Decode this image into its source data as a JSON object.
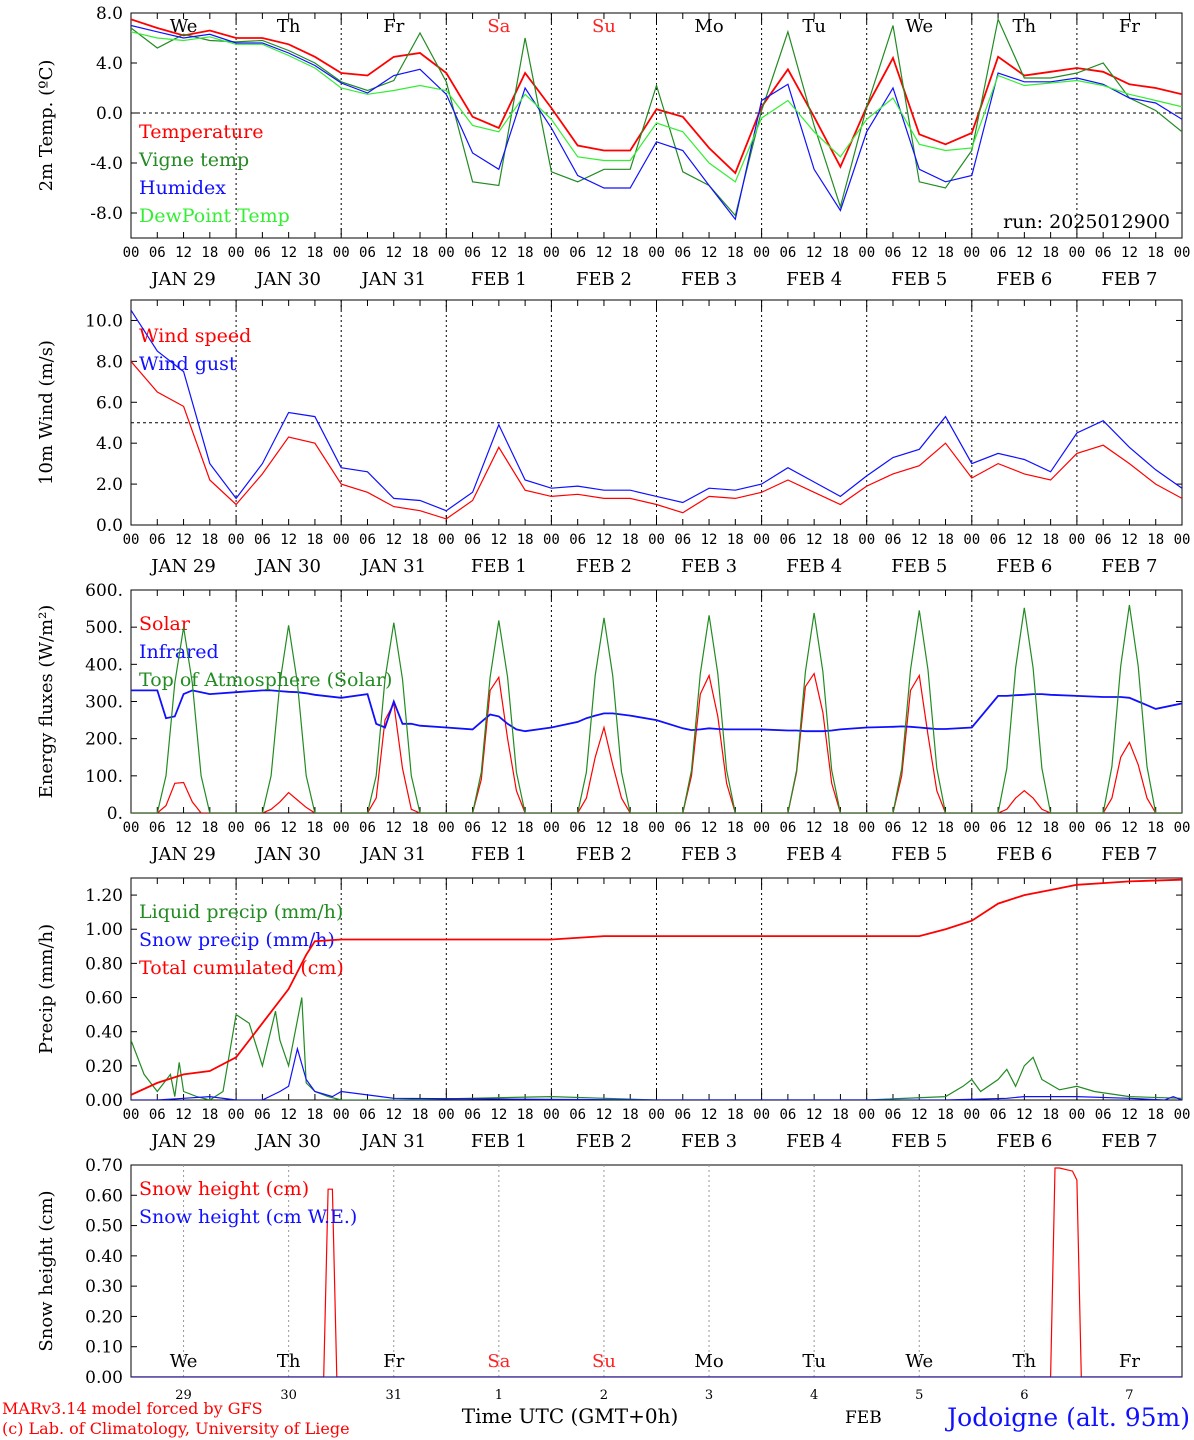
{
  "footer": {
    "credit1": "MARv3.14 model forced by GFS",
    "credit2": "(c) Lab. of Climatology, University of Liege",
    "xlabel": "Time UTC (GMT+0h)",
    "station": "Jodoigne (alt. 95m)",
    "feb_label": "FEB"
  },
  "colors": {
    "red": "#ff0000",
    "darkgreen": "#228b22",
    "blue": "#1010ff",
    "lightgreen": "#33ee33",
    "weekend": "#ff2020",
    "axis": "#000000"
  },
  "time": {
    "hour_ticks": [
      "00",
      "06",
      "12",
      "18"
    ],
    "day_labels": [
      "JAN 29",
      "JAN 30",
      "JAN 31",
      "FEB  1",
      "FEB  2",
      "FEB  3",
      "FEB  4",
      "FEB  5",
      "FEB  6",
      "FEB  7"
    ],
    "weekdays": [
      "We",
      "Th",
      "Fr",
      "Sa",
      "Su",
      "Mo",
      "Tu",
      "We",
      "Th",
      "Fr"
    ],
    "weekend_flags": [
      false,
      false,
      false,
      true,
      true,
      false,
      false,
      false,
      false,
      false
    ],
    "bottom_day_numbers": [
      "29",
      "30",
      "31",
      "1",
      "2",
      "3",
      "4",
      "5",
      "6",
      "7"
    ]
  },
  "chart_data": [
    {
      "type": "line",
      "ylabel": "2m Temp. (ºC)",
      "ylim": [
        -10,
        8
      ],
      "yticks": [
        "8.0",
        "4.0",
        "0.0",
        "-4.0",
        "-8.0"
      ],
      "ytick_values": [
        8,
        4,
        0,
        -4,
        -8
      ],
      "ref_line": 0,
      "annotation": "run: 2025012900",
      "x_hours": [
        0,
        6,
        12,
        18,
        24,
        30,
        36,
        42,
        48,
        54,
        60,
        66,
        72,
        78,
        84,
        90,
        96,
        102,
        108,
        114,
        120,
        126,
        132,
        138,
        144,
        150,
        156,
        162,
        168,
        174,
        180,
        186,
        192,
        198,
        204,
        210,
        216,
        222,
        228,
        234,
        240
      ],
      "series": [
        {
          "name": "Temperature",
          "color": "#ff0000",
          "values": [
            7.5,
            6.8,
            6.2,
            6.6,
            6.0,
            6.0,
            5.5,
            4.5,
            3.2,
            3.0,
            4.5,
            4.8,
            3.2,
            -0.3,
            -1.2,
            3.2,
            0.4,
            -2.6,
            -3.0,
            -3.0,
            0.3,
            -0.3,
            -2.8,
            -4.8,
            0.5,
            3.5,
            -0.3,
            -4.3,
            0.5,
            4.4,
            -1.7,
            -2.5,
            -1.6,
            4.5,
            3.0,
            3.3,
            3.6,
            3.3,
            2.3,
            2.0,
            1.5
          ]
        },
        {
          "name": "Vigne temp",
          "color": "#228b22",
          "values": [
            6.8,
            5.2,
            6.3,
            5.8,
            5.7,
            5.8,
            5.0,
            4.0,
            2.5,
            1.8,
            2.6,
            6.4,
            2.5,
            -5.5,
            -5.8,
            6.0,
            -4.7,
            -5.5,
            -4.5,
            -4.5,
            2.2,
            -4.7,
            -5.8,
            -8.2,
            0.2,
            6.5,
            -1.0,
            -7.5,
            0.5,
            7.0,
            -5.5,
            -6.0,
            -3.0,
            7.5,
            2.8,
            2.8,
            3.2,
            4.0,
            1.2,
            0.2,
            -1.5
          ]
        },
        {
          "name": "Humidex",
          "color": "#1010ff",
          "values": [
            7.0,
            6.5,
            6.0,
            6.3,
            5.6,
            5.6,
            4.8,
            3.8,
            2.4,
            1.6,
            3.0,
            3.5,
            1.5,
            -3.2,
            -4.5,
            2.0,
            -1.2,
            -5.0,
            -6.0,
            -6.0,
            -2.3,
            -3.0,
            -5.8,
            -8.5,
            1.0,
            2.3,
            -4.5,
            -7.8,
            -1.5,
            2.0,
            -4.5,
            -5.5,
            -5.0,
            3.2,
            2.5,
            2.5,
            2.8,
            2.3,
            1.2,
            0.8,
            -0.5
          ]
        },
        {
          "name": "DewPoint Temp",
          "color": "#33ee33",
          "values": [
            6.5,
            6.0,
            5.8,
            6.1,
            5.5,
            5.5,
            4.6,
            3.6,
            2.0,
            1.5,
            1.8,
            2.2,
            1.8,
            -1.0,
            -1.5,
            1.5,
            -0.5,
            -3.5,
            -3.8,
            -3.8,
            -0.8,
            -1.5,
            -4.0,
            -5.5,
            -0.4,
            1.0,
            -1.5,
            -3.5,
            -0.5,
            1.2,
            -2.5,
            -3.0,
            -2.8,
            3.0,
            2.2,
            2.4,
            2.6,
            2.2,
            1.5,
            1.0,
            0.5
          ]
        }
      ]
    },
    {
      "type": "line",
      "ylabel": "10m Wind (m/s)",
      "ylim": [
        0,
        11
      ],
      "yticks": [
        "10.0",
        "8.0",
        "6.0",
        "4.0",
        "2.0",
        "0.0"
      ],
      "ytick_values": [
        10,
        8,
        6,
        4,
        2,
        0
      ],
      "ref_line": 5,
      "x_hours": [
        0,
        6,
        12,
        18,
        24,
        30,
        36,
        42,
        48,
        54,
        60,
        66,
        72,
        78,
        84,
        90,
        96,
        102,
        108,
        114,
        120,
        126,
        132,
        138,
        144,
        150,
        156,
        162,
        168,
        174,
        180,
        186,
        192,
        198,
        204,
        210,
        216,
        222,
        228,
        234,
        240
      ],
      "series": [
        {
          "name": "Wind speed",
          "color": "#ff0000",
          "values": [
            8.0,
            6.5,
            5.8,
            2.2,
            1.0,
            2.5,
            4.3,
            4.0,
            2.0,
            1.6,
            0.9,
            0.7,
            0.3,
            1.2,
            3.8,
            1.7,
            1.4,
            1.5,
            1.3,
            1.3,
            1.0,
            0.6,
            1.4,
            1.3,
            1.6,
            2.2,
            1.6,
            1.0,
            1.9,
            2.5,
            2.9,
            4.0,
            2.3,
            3.0,
            2.5,
            2.2,
            3.5,
            3.9,
            3.0,
            2.0,
            1.3
          ]
        },
        {
          "name": "Wind gust",
          "color": "#1010ff",
          "values": [
            10.5,
            8.5,
            7.5,
            3.0,
            1.3,
            3.0,
            5.5,
            5.3,
            2.8,
            2.6,
            1.3,
            1.2,
            0.7,
            1.6,
            4.9,
            2.2,
            1.8,
            1.9,
            1.7,
            1.7,
            1.4,
            1.1,
            1.8,
            1.7,
            2.0,
            2.8,
            2.1,
            1.4,
            2.4,
            3.3,
            3.7,
            5.3,
            3.0,
            3.5,
            3.2,
            2.6,
            4.5,
            5.1,
            3.8,
            2.7,
            1.8
          ]
        }
      ]
    },
    {
      "type": "line",
      "ylabel": "Energy fluxes (W/m²)",
      "ylim": [
        0,
        600
      ],
      "yticks": [
        "600.",
        "500.",
        "400.",
        "300.",
        "200.",
        "100.",
        "0."
      ],
      "ytick_values": [
        600,
        500,
        400,
        300,
        200,
        100,
        0
      ],
      "x_hours": [
        0,
        6,
        8,
        10,
        12,
        14,
        16,
        18,
        24,
        30,
        32,
        34,
        36,
        38,
        40,
        42,
        48,
        54,
        56,
        58,
        60,
        62,
        64,
        66,
        72,
        78,
        80,
        82,
        84,
        86,
        88,
        90,
        96,
        102,
        104,
        106,
        108,
        110,
        112,
        114,
        120,
        126,
        128,
        130,
        132,
        134,
        136,
        138,
        144,
        150,
        152,
        154,
        156,
        158,
        160,
        162,
        168,
        174,
        176,
        178,
        180,
        182,
        184,
        186,
        192,
        198,
        200,
        202,
        204,
        206,
        208,
        210,
        216,
        222,
        224,
        226,
        228,
        230,
        232,
        234,
        240
      ],
      "series": [
        {
          "name": "Solar",
          "color": "#ff0000",
          "values": [
            0,
            0,
            20,
            80,
            82,
            30,
            0,
            0,
            0,
            0,
            10,
            30,
            55,
            35,
            15,
            0,
            0,
            0,
            40,
            250,
            295,
            120,
            10,
            0,
            0,
            0,
            90,
            330,
            365,
            200,
            60,
            0,
            0,
            0,
            40,
            150,
            230,
            130,
            40,
            0,
            0,
            0,
            100,
            320,
            370,
            260,
            80,
            0,
            0,
            0,
            110,
            340,
            375,
            270,
            80,
            0,
            0,
            0,
            100,
            330,
            370,
            210,
            60,
            0,
            0,
            0,
            10,
            40,
            60,
            40,
            10,
            0,
            0,
            0,
            40,
            150,
            190,
            130,
            40,
            0,
            0
          ]
        },
        {
          "name": "Infrared",
          "color": "#1010ff",
          "values": [
            330,
            330,
            255,
            260,
            320,
            330,
            325,
            320,
            325,
            330,
            330,
            328,
            326,
            325,
            322,
            318,
            310,
            320,
            240,
            230,
            300,
            240,
            240,
            235,
            230,
            225,
            245,
            265,
            260,
            240,
            225,
            220,
            230,
            245,
            255,
            262,
            268,
            268,
            265,
            262,
            250,
            228,
            223,
            225,
            228,
            226,
            225,
            225,
            225,
            222,
            222,
            220,
            220,
            220,
            222,
            225,
            230,
            232,
            233,
            232,
            230,
            228,
            226,
            226,
            230,
            315,
            315,
            317,
            318,
            320,
            320,
            318,
            315,
            312,
            312,
            312,
            310,
            300,
            290,
            280,
            295
          ]
        },
        {
          "name": "Top of Atmosphere (Solar)",
          "color": "#228b22",
          "values": [
            0,
            0,
            100,
            350,
            500,
            350,
            100,
            0,
            0,
            0,
            100,
            350,
            505,
            350,
            100,
            0,
            0,
            0,
            100,
            360,
            512,
            360,
            100,
            0,
            0,
            0,
            110,
            365,
            518,
            365,
            110,
            0,
            0,
            0,
            110,
            370,
            525,
            370,
            110,
            0,
            0,
            0,
            115,
            375,
            532,
            375,
            115,
            0,
            0,
            0,
            115,
            380,
            538,
            380,
            115,
            0,
            0,
            0,
            120,
            385,
            545,
            385,
            120,
            0,
            0,
            0,
            120,
            390,
            552,
            390,
            120,
            0,
            0,
            0,
            125,
            395,
            560,
            395,
            125,
            0,
            0
          ]
        }
      ]
    },
    {
      "type": "line",
      "ylabel": "Precip (mm/h)",
      "ylim": [
        0,
        1.3
      ],
      "yticks": [
        "1.20",
        "1.00",
        "0.80",
        "0.60",
        "0.40",
        "0.20",
        "0.00"
      ],
      "ytick_values": [
        1.2,
        1.0,
        0.8,
        0.6,
        0.4,
        0.2,
        0.0
      ],
      "series": [
        {
          "name": "Liquid precip (mm/h)",
          "color": "#228b22",
          "x_hours": [
            0,
            3,
            6,
            9,
            10,
            11,
            12,
            15,
            18,
            21,
            24,
            27,
            30,
            33,
            34,
            36,
            39,
            40,
            42,
            45,
            48,
            60,
            96,
            120,
            168,
            186,
            190,
            192,
            194,
            198,
            200,
            202,
            204,
            206,
            208,
            212,
            216,
            220,
            228,
            240
          ],
          "values": [
            0.35,
            0.15,
            0.05,
            0.15,
            0.02,
            0.22,
            0.05,
            0.02,
            0.0,
            0.05,
            0.5,
            0.45,
            0.2,
            0.52,
            0.35,
            0.2,
            0.6,
            0.1,
            0.05,
            0.02,
            0.0,
            0.0,
            0.02,
            0.0,
            0.0,
            0.02,
            0.08,
            0.12,
            0.05,
            0.12,
            0.18,
            0.08,
            0.2,
            0.25,
            0.12,
            0.06,
            0.08,
            0.05,
            0.02,
            0.01
          ]
        },
        {
          "name": "Snow precip (mm/h)",
          "color": "#1010ff",
          "x_hours": [
            0,
            6,
            12,
            18,
            24,
            30,
            34,
            36,
            38,
            40,
            42,
            46,
            48,
            60,
            120,
            168,
            186,
            200,
            204,
            216,
            228,
            236,
            238,
            240
          ],
          "values": [
            0.0,
            0.0,
            0.01,
            0.02,
            0.0,
            0.0,
            0.05,
            0.08,
            0.3,
            0.12,
            0.05,
            0.02,
            0.05,
            0.01,
            0.0,
            0.0,
            0.0,
            0.01,
            0.02,
            0.02,
            0.01,
            0.0,
            0.02,
            0.0
          ]
        },
        {
          "name": "Total cumulated (cm)",
          "color": "#ff0000",
          "x_hours": [
            0,
            6,
            12,
            18,
            24,
            30,
            36,
            40,
            42,
            48,
            60,
            72,
            96,
            108,
            120,
            168,
            180,
            186,
            192,
            198,
            204,
            210,
            216,
            222,
            228,
            240
          ],
          "values": [
            0.03,
            0.1,
            0.15,
            0.17,
            0.25,
            0.45,
            0.65,
            0.85,
            0.93,
            0.94,
            0.94,
            0.94,
            0.94,
            0.96,
            0.96,
            0.96,
            0.96,
            1.0,
            1.05,
            1.15,
            1.2,
            1.23,
            1.26,
            1.27,
            1.28,
            1.29
          ]
        }
      ]
    },
    {
      "type": "line",
      "ylabel": "Snow height (cm)",
      "ylim": [
        0,
        0.7
      ],
      "yticks": [
        "0.70",
        "0.60",
        "0.50",
        "0.40",
        "0.30",
        "0.20",
        "0.10",
        "0.00"
      ],
      "ytick_values": [
        0.7,
        0.6,
        0.5,
        0.4,
        0.3,
        0.2,
        0.1,
        0.0
      ],
      "series": [
        {
          "name": "Snow height (cm)",
          "color": "#ff0000",
          "x_hours": [
            0,
            44,
            45,
            46,
            47,
            48,
            210,
            211,
            212,
            215,
            216,
            217,
            218,
            240
          ],
          "values": [
            0,
            0,
            0.62,
            0.62,
            0,
            0,
            0,
            0.69,
            0.69,
            0.68,
            0.65,
            0,
            0,
            0
          ]
        },
        {
          "name": "Snow height (cm W.E.)",
          "color": "#1010ff",
          "x_hours": [
            0,
            240
          ],
          "values": [
            0,
            0
          ]
        }
      ]
    }
  ]
}
